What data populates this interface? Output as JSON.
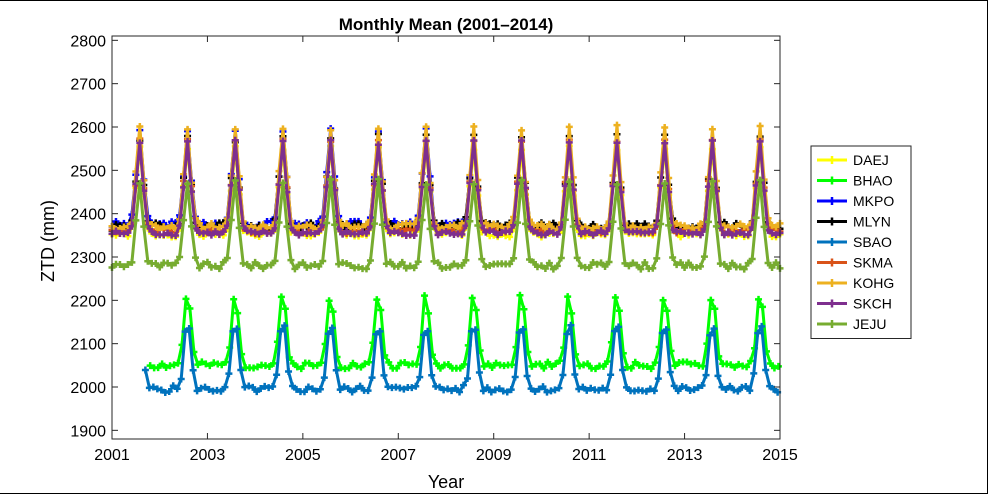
{
  "chart_data": {
    "type": "line",
    "title": "Monthly Mean (2001–2014)",
    "xlabel": "Year",
    "ylabel": "ZTD (mm)",
    "xlim": [
      2001,
      2015
    ],
    "ylim": [
      1880,
      2810
    ],
    "xticks": [
      2001,
      2003,
      2005,
      2007,
      2009,
      2011,
      2013,
      2015
    ],
    "yticks": [
      1900,
      2000,
      2100,
      2200,
      2300,
      2400,
      2500,
      2600,
      2700,
      2800
    ],
    "grid": false,
    "legend_position": "right",
    "series": [
      {
        "name": "DAEJ",
        "color": "#ffff00",
        "start": 2001,
        "end": 2015,
        "base": 2352,
        "amp": 200,
        "noise": 6,
        "seed": 1
      },
      {
        "name": "BHAO",
        "color": "#00ff00",
        "start": 2001.8,
        "end": 2015,
        "base": 2050,
        "amp": 170,
        "noise": 8,
        "seed": 2
      },
      {
        "name": "MKPO",
        "color": "#0000ff",
        "start": 2001,
        "end": 2008.5,
        "base": 2375,
        "amp": 220,
        "noise": 8,
        "seed": 3
      },
      {
        "name": "MLYN",
        "color": "#000000",
        "start": 2001,
        "end": 2015,
        "base": 2370,
        "amp": 205,
        "noise": 10,
        "seed": 4
      },
      {
        "name": "SBAO",
        "color": "#0072bd",
        "start": 2001.7,
        "end": 2015,
        "base": 1995,
        "amp": 160,
        "noise": 8,
        "seed": 5
      },
      {
        "name": "SKMA",
        "color": "#d95319",
        "start": 2001,
        "end": 2015,
        "base": 2360,
        "amp": 210,
        "noise": 6,
        "seed": 6
      },
      {
        "name": "KOHG",
        "color": "#edb120",
        "start": 2001,
        "end": 2015,
        "base": 2370,
        "amp": 230,
        "noise": 8,
        "seed": 7
      },
      {
        "name": "SKCH",
        "color": "#7e2f8e",
        "start": 2001,
        "end": 2015,
        "base": 2355,
        "amp": 210,
        "noise": 6,
        "seed": 8
      },
      {
        "name": "JEJU",
        "color": "#77ac30",
        "start": 2001,
        "end": 2015,
        "base": 2280,
        "amp": 195,
        "noise": 8,
        "seed": 9
      }
    ]
  }
}
